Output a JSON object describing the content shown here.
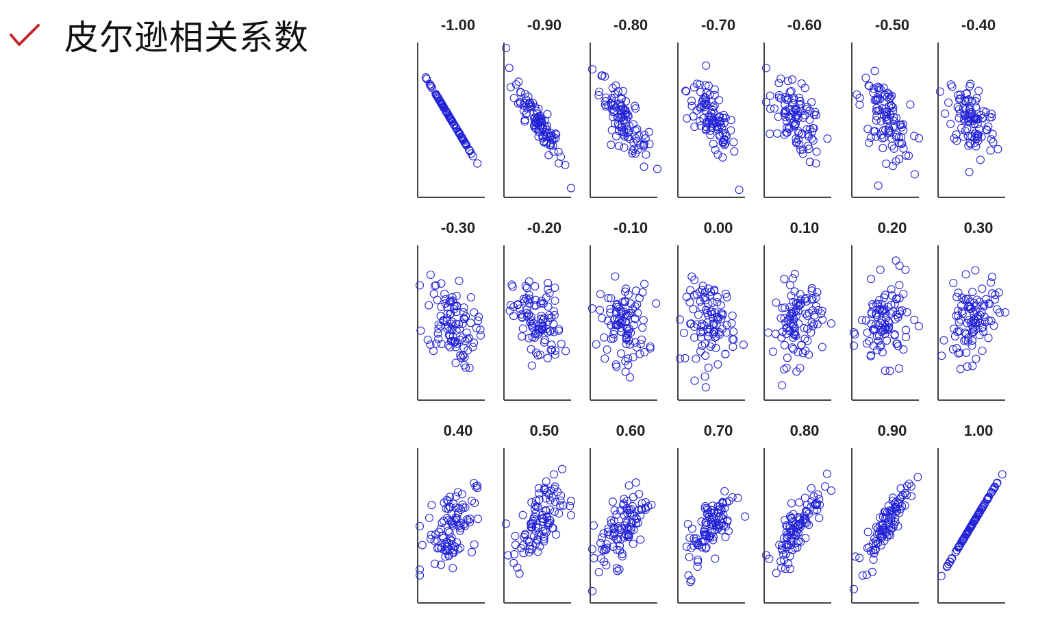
{
  "page": {
    "title": "皮尔逊相关系数",
    "icon": "check-icon",
    "accent": "#c0242a"
  },
  "chart_data": {
    "type": "scatter",
    "grid": "3x7",
    "marker": "open-circle",
    "marker_color": "#2323d6",
    "panels": [
      {
        "label": "-1.00",
        "r": -1.0
      },
      {
        "label": "-0.90",
        "r": -0.9
      },
      {
        "label": "-0.80",
        "r": -0.8
      },
      {
        "label": "-0.70",
        "r": -0.7
      },
      {
        "label": "-0.60",
        "r": -0.6
      },
      {
        "label": "-0.50",
        "r": -0.5
      },
      {
        "label": "-0.40",
        "r": -0.4
      },
      {
        "label": "-0.30",
        "r": -0.3
      },
      {
        "label": "-0.20",
        "r": -0.2
      },
      {
        "label": "-0.10",
        "r": -0.1
      },
      {
        "label": "0.00",
        "r": 0.0
      },
      {
        "label": "0.10",
        "r": 0.1
      },
      {
        "label": "0.20",
        "r": 0.2
      },
      {
        "label": "0.30",
        "r": 0.3
      },
      {
        "label": "0.40",
        "r": 0.4
      },
      {
        "label": "0.50",
        "r": 0.5
      },
      {
        "label": "0.60",
        "r": 0.6
      },
      {
        "label": "0.70",
        "r": 0.7
      },
      {
        "label": "0.80",
        "r": 0.8
      },
      {
        "label": "0.90",
        "r": 0.9
      },
      {
        "label": "1.00",
        "r": 1.0
      }
    ]
  }
}
